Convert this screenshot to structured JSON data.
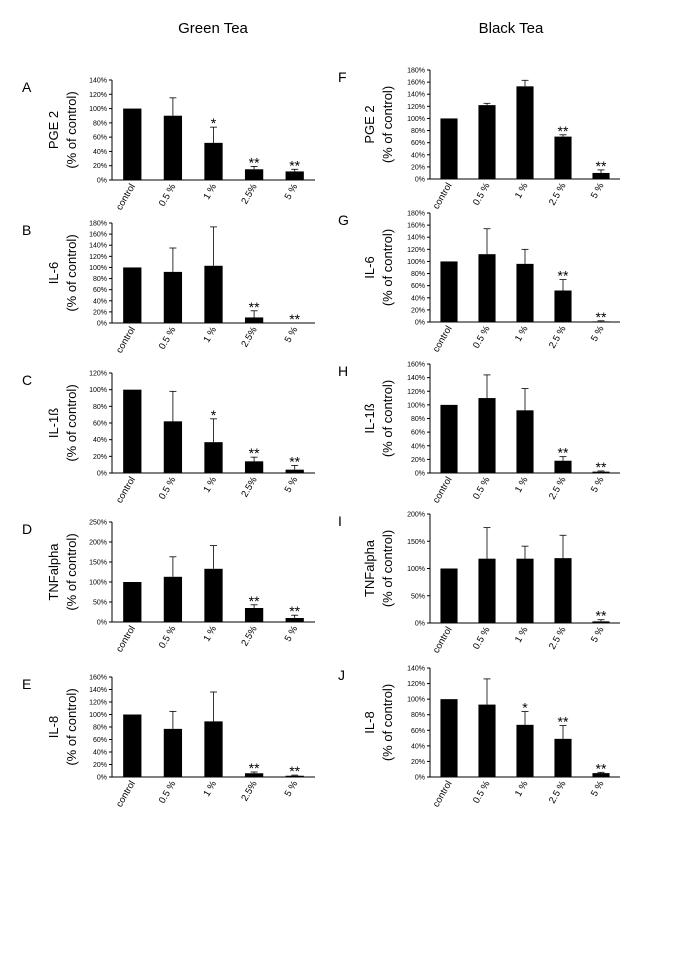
{
  "columns": [
    {
      "title": "Green Tea"
    },
    {
      "title": "Black Tea"
    }
  ],
  "chart_data": [
    {
      "type": "bar",
      "letter": "A",
      "ylabel": "PGE 2",
      "ylabel2": "(% of control)",
      "categories": [
        "control",
        "0.5 %",
        "1 %",
        "2.5%",
        "5 %"
      ],
      "values": [
        100,
        90,
        52,
        15,
        12
      ],
      "errors": [
        0,
        25,
        22,
        4,
        3
      ],
      "stars": [
        "",
        "",
        "*",
        "**",
        "**"
      ],
      "ylim": [
        0,
        140
      ],
      "ticks": [
        0,
        20,
        40,
        60,
        80,
        100,
        120,
        140
      ],
      "tick_suffix": "%"
    },
    {
      "type": "bar",
      "letter": "B",
      "ylabel": "IL-6",
      "ylabel2": "(% of control)",
      "categories": [
        "control",
        "0.5 %",
        "1 %",
        "2.5%",
        "5 %"
      ],
      "values": [
        100,
        92,
        103,
        10,
        0
      ],
      "errors": [
        0,
        43,
        70,
        12,
        0
      ],
      "stars": [
        "",
        "",
        "",
        "**",
        "**"
      ],
      "ylim": [
        0,
        180
      ],
      "ticks": [
        0,
        20,
        40,
        60,
        80,
        100,
        120,
        140,
        160,
        180
      ],
      "tick_suffix": "%"
    },
    {
      "type": "bar",
      "letter": "C",
      "ylabel": "IL-1ß",
      "ylabel2": "(% of control)",
      "categories": [
        "control",
        "0.5 %",
        "1 %",
        "2.5%",
        "5 %"
      ],
      "values": [
        100,
        62,
        37,
        14,
        4
      ],
      "errors": [
        0,
        36,
        28,
        5,
        5
      ],
      "stars": [
        "",
        "",
        "*",
        "**",
        "**"
      ],
      "ylim": [
        0,
        120
      ],
      "ticks": [
        0,
        20,
        40,
        60,
        80,
        100,
        120
      ],
      "tick_suffix": "%"
    },
    {
      "type": "bar",
      "letter": "D",
      "ylabel": "TNFalpha",
      "ylabel2": "(% of control)",
      "categories": [
        "control",
        "0.5 %",
        "1 %",
        "2.5%",
        "5 %"
      ],
      "values": [
        100,
        113,
        133,
        35,
        10
      ],
      "errors": [
        0,
        50,
        58,
        8,
        7
      ],
      "stars": [
        "",
        "",
        "",
        "**",
        "**"
      ],
      "ylim": [
        0,
        250
      ],
      "ticks": [
        0,
        50,
        100,
        150,
        200,
        250
      ],
      "tick_suffix": "%"
    },
    {
      "type": "bar",
      "letter": "E",
      "ylabel": "IL-8",
      "ylabel2": "(% of control)",
      "categories": [
        "control",
        "0.5 %",
        "1 %",
        "2.5%",
        "5 %"
      ],
      "values": [
        100,
        77,
        89,
        6,
        2
      ],
      "errors": [
        0,
        28,
        47,
        2,
        1
      ],
      "stars": [
        "",
        "",
        "",
        "**",
        "**"
      ],
      "ylim": [
        0,
        160
      ],
      "ticks": [
        0,
        20,
        40,
        60,
        80,
        100,
        120,
        140,
        160
      ],
      "tick_suffix": "%"
    },
    {
      "type": "bar",
      "letter": "F",
      "ylabel": "PGE 2",
      "ylabel2": "(% of control)",
      "categories": [
        "control",
        "0.5 %",
        "1 %",
        "2.5 %",
        "5 %"
      ],
      "values": [
        100,
        122,
        153,
        70,
        10
      ],
      "errors": [
        0,
        3,
        10,
        3,
        5
      ],
      "stars": [
        "",
        "",
        "",
        "**",
        "**"
      ],
      "ylim": [
        0,
        180
      ],
      "ticks": [
        0,
        20,
        40,
        60,
        80,
        100,
        120,
        140,
        160,
        180
      ],
      "tick_suffix": "%"
    },
    {
      "type": "bar",
      "letter": "G",
      "ylabel": "IL-6",
      "ylabel2": "(% of control)",
      "categories": [
        "control",
        "0.5 %",
        "1 %",
        "2.5 %",
        "5 %"
      ],
      "values": [
        100,
        112,
        96,
        52,
        1
      ],
      "errors": [
        0,
        42,
        24,
        18,
        1
      ],
      "stars": [
        "",
        "",
        "",
        "**",
        "**"
      ],
      "ylim": [
        0,
        180
      ],
      "ticks": [
        0,
        20,
        40,
        60,
        80,
        100,
        120,
        140,
        160,
        180
      ],
      "tick_suffix": "%"
    },
    {
      "type": "bar",
      "letter": "H",
      "ylabel": "IL-1ß",
      "ylabel2": "(% of control)",
      "categories": [
        "control",
        "0.5 %",
        "1 %",
        "2.5 %",
        "5 %"
      ],
      "values": [
        100,
        110,
        92,
        18,
        2
      ],
      "errors": [
        0,
        34,
        32,
        6,
        1
      ],
      "stars": [
        "",
        "",
        "",
        "**",
        "**"
      ],
      "ylim": [
        0,
        160
      ],
      "ticks": [
        0,
        20,
        40,
        60,
        80,
        100,
        120,
        140,
        160
      ],
      "tick_suffix": "%"
    },
    {
      "type": "bar",
      "letter": "I",
      "ylabel": "TNFalpha",
      "ylabel2": "(% of control)",
      "categories": [
        "control",
        "0.5 %",
        "1 %",
        "2.5 %",
        "5 %"
      ],
      "values": [
        100,
        118,
        118,
        119,
        3
      ],
      "errors": [
        0,
        57,
        23,
        42,
        3
      ],
      "stars": [
        "",
        "",
        "",
        "",
        "**"
      ],
      "ylim": [
        0,
        200
      ],
      "ticks": [
        0,
        50,
        100,
        150,
        200
      ],
      "tick_suffix": "%"
    },
    {
      "type": "bar",
      "letter": "J",
      "ylabel": "IL-8",
      "ylabel2": "(% of control)",
      "categories": [
        "control",
        "0.5 %",
        "1 %",
        "2.5 %",
        "5 %"
      ],
      "values": [
        100,
        93,
        67,
        49,
        5
      ],
      "errors": [
        0,
        33,
        17,
        17,
        1
      ],
      "stars": [
        "",
        "",
        "*",
        "**",
        "**"
      ],
      "ylim": [
        0,
        140
      ],
      "ticks": [
        0,
        20,
        40,
        60,
        80,
        100,
        120,
        140
      ],
      "tick_suffix": "%"
    }
  ]
}
